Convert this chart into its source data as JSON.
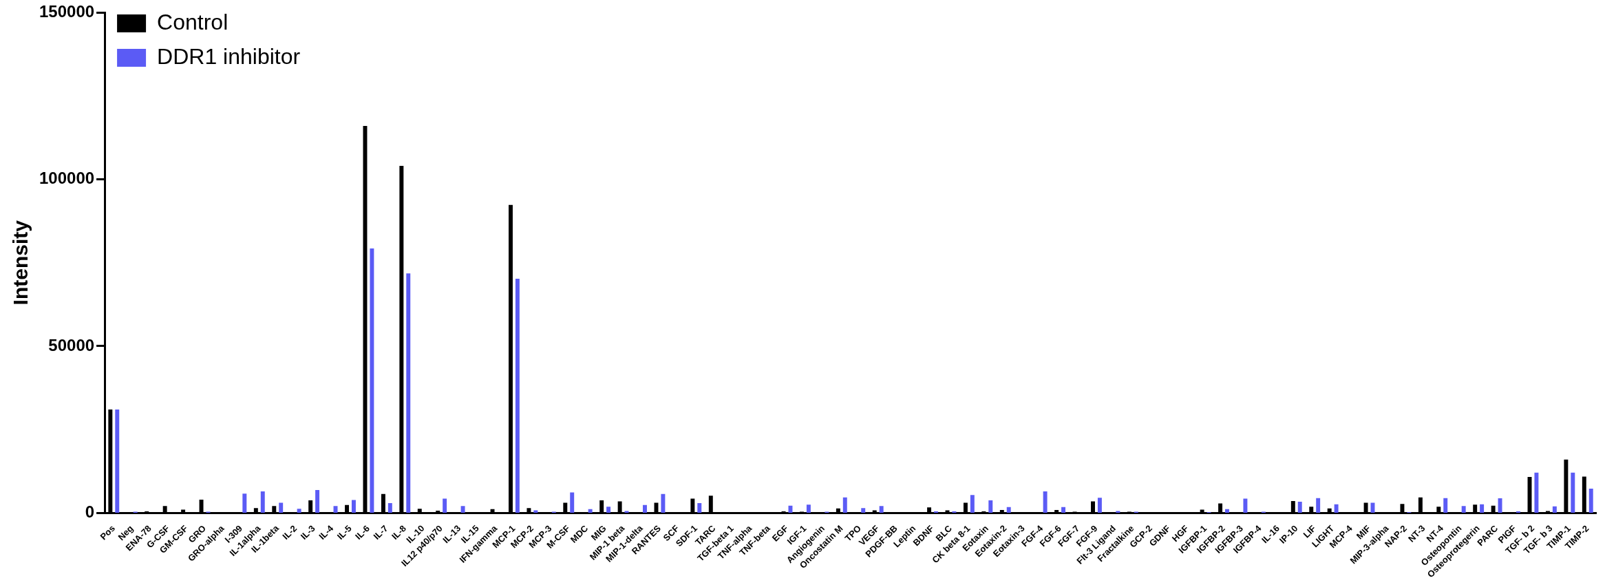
{
  "chart_data": {
    "type": "bar",
    "ylabel": "Intensity",
    "categories": [
      "Pos",
      "Neg",
      "ENA-78",
      "G-CSF",
      "GM-CSF",
      "GRO",
      "GRO-alpha",
      "I-309",
      "IL-1alpha",
      "IL-1beta",
      "IL-2",
      "IL-3",
      "IL-4",
      "IL-5",
      "IL-6",
      "IL-7",
      "IL-8",
      "IL-10",
      "IL12 p40/p70",
      "IL-13",
      "IL-15",
      "IFN-gamma",
      "MCP-1",
      "MCP-2",
      "MCP-3",
      "M-CSF",
      "MDC",
      "MIG",
      "MIP-1 beta",
      "MIP-1-delta",
      "RANTES",
      "SCF",
      "SDF-1",
      "TARC",
      "TGF-beta 1",
      "TNF-alpha",
      "TNF-beta",
      "EGF",
      "IGF-1",
      "Angiogenin",
      "Oncostatin M",
      "TPO",
      "VEGF",
      "PDGF-BB",
      "Leptin",
      "BDNF",
      "BLC",
      "CK beta 8-1",
      "Eotaxin",
      "Eotaxin-2",
      "Eotaxin-3",
      "FGF-4",
      "FGF-6",
      "FGF-7",
      "FGF-9",
      "Flt-3 Ligand",
      "Fractalkine",
      "GCP-2",
      "GDNF",
      "HGF",
      "IGFBP-1",
      "IGFBP-2",
      "IGFBP-3",
      "IGFBP-4",
      "IL-16",
      "IP-10",
      "LIF",
      "LIGHT",
      "MCP-4",
      "MIF",
      "MIP-3-alpha",
      "NAP-2",
      "NT-3",
      "NT-4",
      "Osteopontin",
      "Osteoprotegerin",
      "PARC",
      "PIGF",
      "TGF- b 2",
      "TGF- b 3",
      "TIMP-1",
      "TIMP-2"
    ],
    "series": [
      {
        "name": "Control",
        "color": "#000000",
        "values": [
          31000,
          0,
          500,
          2100,
          1000,
          4000,
          0,
          0,
          1500,
          2100,
          0,
          3800,
          0,
          2400,
          116000,
          5700,
          104000,
          1300,
          700,
          0,
          0,
          1200,
          92300,
          1500,
          300,
          3100,
          0,
          3800,
          3500,
          300,
          3100,
          0,
          4300,
          5200,
          0,
          0,
          0,
          500,
          400,
          0,
          1400,
          0,
          800,
          0,
          200,
          1700,
          800,
          3100,
          500,
          900,
          0,
          0,
          900,
          400,
          3500,
          0,
          400,
          0,
          0,
          0,
          1000,
          2900,
          0,
          0,
          300,
          3600,
          1900,
          1400,
          0,
          3100,
          0,
          2700,
          4700,
          1900,
          0,
          2500,
          2200,
          0,
          10800,
          600,
          16000,
          10900
        ]
      },
      {
        "name": "DDR1 inhibitor",
        "color": "#5b5bf5",
        "values": [
          31000,
          400,
          0,
          0,
          0,
          400,
          0,
          5800,
          6500,
          3100,
          1300,
          6900,
          2100,
          3900,
          79300,
          3000,
          71800,
          0,
          4300,
          2100,
          0,
          0,
          70200,
          800,
          400,
          6200,
          1200,
          1900,
          600,
          2400,
          5700,
          0,
          3000,
          0,
          0,
          0,
          0,
          2200,
          2500,
          400,
          4700,
          1500,
          2100,
          0,
          0,
          500,
          500,
          5400,
          3800,
          1800,
          null,
          6500,
          1800,
          0,
          4600,
          600,
          400,
          0,
          null,
          0,
          300,
          1200,
          4300,
          400,
          0,
          3400,
          4500,
          2600,
          0,
          3100,
          0,
          300,
          0,
          4500,
          2100,
          2600,
          4400,
          500,
          12100,
          2000,
          12100,
          7300
        ]
      }
    ],
    "ylim": [
      0,
      150000
    ],
    "yticks": [
      0,
      50000,
      100000,
      150000
    ],
    "grid": false,
    "legend": "top left"
  }
}
